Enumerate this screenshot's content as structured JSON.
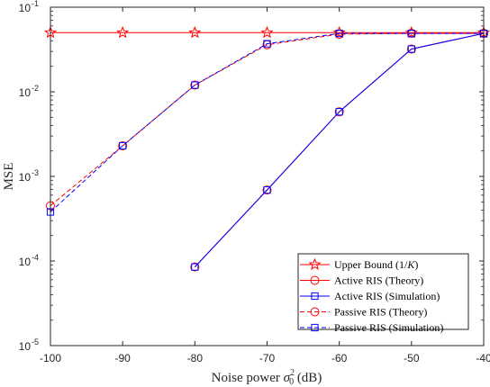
{
  "chart_data": {
    "type": "line",
    "title": "",
    "xlabel_main": "Noise power ",
    "xlabel_symbol": "σ",
    "xlabel_sub": "0",
    "xlabel_sup": "2",
    "xlabel_unit": " (dB)",
    "ylabel": "MSE",
    "xlim": [
      -100,
      -40
    ],
    "ylim": [
      1e-05,
      0.1
    ],
    "yscale": "log",
    "grid": false,
    "legend_position": "bottom-right",
    "x_ticks": [
      {
        "value": -100,
        "label": "-100"
      },
      {
        "value": -90,
        "label": "-90"
      },
      {
        "value": -80,
        "label": "-80"
      },
      {
        "value": -70,
        "label": "-70"
      },
      {
        "value": -60,
        "label": "-60"
      },
      {
        "value": -50,
        "label": "-50"
      },
      {
        "value": -40,
        "label": "-40"
      }
    ],
    "y_ticks": [
      {
        "value": 1e-05,
        "base": "10",
        "exp": "-5"
      },
      {
        "value": 0.0001,
        "base": "10",
        "exp": "-4"
      },
      {
        "value": 0.001,
        "base": "10",
        "exp": "-3"
      },
      {
        "value": 0.01,
        "base": "10",
        "exp": "-2"
      },
      {
        "value": 0.1,
        "base": "10",
        "exp": "-1"
      }
    ],
    "series": [
      {
        "name": "Upper Bound (1/K)",
        "label_main": "Upper Bound (1/",
        "label_italic": "K",
        "label_end": ")",
        "color": "#ff0000",
        "dash": false,
        "marker": "star",
        "x": [
          -100,
          -90,
          -80,
          -70,
          -60,
          -50,
          -40
        ],
        "y": [
          0.05,
          0.05,
          0.05,
          0.05,
          0.05,
          0.05,
          0.05
        ]
      },
      {
        "name": "Active RIS (Theory)",
        "color": "#ff0000",
        "dash": false,
        "marker": "circle",
        "x": [
          -80,
          -70,
          -60,
          -50,
          -40
        ],
        "y": [
          8.5e-05,
          0.00069,
          0.0058,
          0.032,
          0.049
        ]
      },
      {
        "name": "Active RIS (Simulation)",
        "color": "#0000ff",
        "dash": false,
        "marker": "square",
        "x": [
          -80,
          -70,
          -60,
          -50,
          -40
        ],
        "y": [
          8.5e-05,
          0.00069,
          0.0058,
          0.032,
          0.049
        ]
      },
      {
        "name": "Passive RIS (Theory)",
        "color": "#ff0000",
        "dash": true,
        "marker": "circle",
        "x": [
          -100,
          -90,
          -80,
          -70,
          -60,
          -50,
          -40
        ],
        "y": [
          0.00045,
          0.0023,
          0.012,
          0.036,
          0.048,
          0.049,
          0.049
        ]
      },
      {
        "name": "Passive RIS (Simulation)",
        "color": "#0000ff",
        "dash": true,
        "marker": "square",
        "x": [
          -100,
          -90,
          -80,
          -70,
          -60,
          -50,
          -40
        ],
        "y": [
          0.00038,
          0.0023,
          0.012,
          0.037,
          0.049,
          0.049,
          0.049
        ]
      }
    ]
  }
}
